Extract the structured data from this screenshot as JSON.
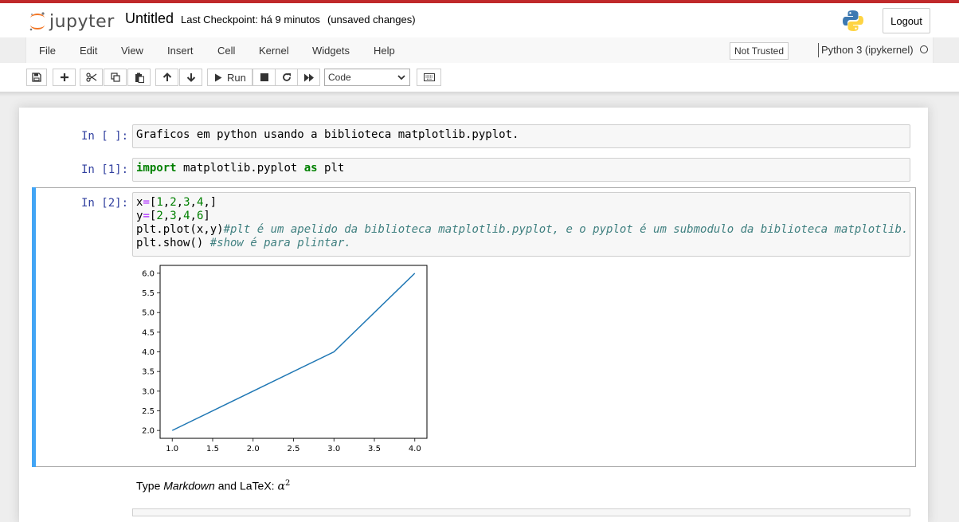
{
  "header": {
    "logo_text": "jupyter",
    "notebook_title": "Untitled",
    "checkpoint": "Last Checkpoint: há 9 minutos",
    "status": "(unsaved changes)",
    "logout_label": "Logout"
  },
  "menu": {
    "items": [
      "File",
      "Edit",
      "View",
      "Insert",
      "Cell",
      "Kernel",
      "Widgets",
      "Help"
    ],
    "trust": "Not Trusted",
    "kernel": "Python 3 (ipykernel)"
  },
  "toolbar": {
    "run_label": "Run",
    "cell_type": "Code"
  },
  "cells": [
    {
      "prompt": "In [ ]:",
      "source": [
        "Graficos em python usando a biblioteca matplotlib.pyplot."
      ]
    },
    {
      "prompt": "In [1]:",
      "source": [
        "import matplotlib.pyplot as plt"
      ]
    },
    {
      "prompt": "In [2]:",
      "source": [
        "x=[1,2,3,4,]",
        "y=[2,3,4,6]",
        "plt.plot(x,y)#plt é um apelido da biblioteca matplotlib.pyplot, e o pyplot é um submodulo da biblioteca matplotlib.",
        "plt.show() #show é para plintar."
      ]
    }
  ],
  "markdown_preview": {
    "prefix": "Type ",
    "emph": "Markdown",
    "middle": " and LaTeX: ",
    "math_base": "α",
    "math_exp": "2"
  },
  "colors": {
    "accent_bar": "#42a5f5",
    "line": "#1f77b4",
    "prompt": "#303f9f",
    "top_strip": "#c0292b"
  },
  "chart_data": {
    "type": "line",
    "x": [
      1,
      2,
      3,
      4
    ],
    "series": [
      {
        "values": [
          2,
          3,
          4,
          6
        ]
      }
    ],
    "xlim": [
      0.85,
      4.15
    ],
    "ylim": [
      1.8,
      6.2
    ],
    "xticks": [
      "1.0",
      "1.5",
      "2.0",
      "2.5",
      "3.0",
      "3.5",
      "4.0"
    ],
    "yticks": [
      "2.0",
      "2.5",
      "3.0",
      "3.5",
      "4.0",
      "4.5",
      "5.0",
      "5.5",
      "6.0"
    ],
    "grid": false,
    "title": "",
    "xlabel": "",
    "ylabel": ""
  }
}
